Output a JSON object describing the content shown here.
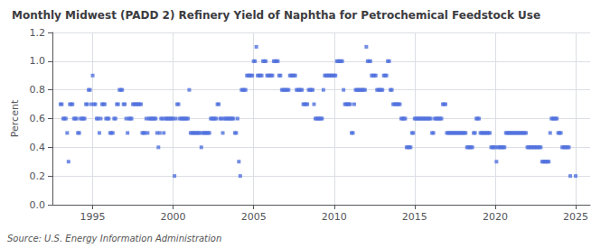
{
  "chart_data": {
    "type": "scatter",
    "title": "Monthly Midwest (PADD 2) Refinery Yield of Naphtha for Petrochemical Feedstock Use",
    "ylabel": "Percent",
    "annotation": "Source: U.S. Energy Information Administration",
    "marker": "square",
    "grid": true,
    "xlim": [
      1992.5,
      2025.9
    ],
    "xticks": [
      1995,
      2000,
      2005,
      2010,
      2015,
      2020,
      2025
    ],
    "ylim": [
      0.0,
      1.2
    ],
    "yticks": [
      {
        "value": 0.0,
        "label": "0.0"
      },
      0.2,
      0.4,
      0.6,
      0.8,
      {
        "value": 1.0,
        "label": "1.0"
      },
      1.2
    ],
    "x": [
      1993.0,
      1993.083,
      1993.167,
      1993.25,
      1993.333,
      1993.417,
      1993.5,
      1993.583,
      1993.667,
      1993.75,
      1993.833,
      1993.917,
      1994.0,
      1994.083,
      1994.167,
      1994.25,
      1994.333,
      1994.417,
      1994.5,
      1994.583,
      1994.667,
      1994.75,
      1994.833,
      1994.917,
      1995.0,
      1995.083,
      1995.167,
      1995.25,
      1995.333,
      1995.417,
      1995.5,
      1995.583,
      1995.667,
      1995.75,
      1995.833,
      1995.917,
      1996.0,
      1996.083,
      1996.167,
      1996.25,
      1996.333,
      1996.417,
      1996.5,
      1996.583,
      1996.667,
      1996.75,
      1996.833,
      1996.917,
      1997.0,
      1997.083,
      1997.167,
      1997.25,
      1997.333,
      1997.417,
      1997.5,
      1997.583,
      1997.667,
      1997.75,
      1997.833,
      1997.917,
      1998.0,
      1998.083,
      1998.167,
      1998.25,
      1998.333,
      1998.417,
      1998.5,
      1998.583,
      1998.667,
      1998.75,
      1998.833,
      1998.917,
      1999.0,
      1999.083,
      1999.167,
      1999.25,
      1999.333,
      1999.417,
      1999.5,
      1999.583,
      1999.667,
      1999.75,
      1999.833,
      1999.917,
      2000.0,
      2000.083,
      2000.167,
      2000.25,
      2000.333,
      2000.417,
      2000.5,
      2000.583,
      2000.667,
      2000.75,
      2000.833,
      2000.917,
      2001.0,
      2001.083,
      2001.167,
      2001.25,
      2001.333,
      2001.417,
      2001.5,
      2001.583,
      2001.667,
      2001.75,
      2001.833,
      2001.917,
      2002.0,
      2002.083,
      2002.167,
      2002.25,
      2002.333,
      2002.417,
      2002.5,
      2002.583,
      2002.667,
      2002.75,
      2002.833,
      2002.917,
      2003.0,
      2003.083,
      2003.167,
      2003.25,
      2003.333,
      2003.417,
      2003.5,
      2003.583,
      2003.667,
      2003.75,
      2003.833,
      2003.917,
      2004.0,
      2004.083,
      2004.167,
      2004.25,
      2004.333,
      2004.417,
      2004.5,
      2004.583,
      2004.667,
      2004.75,
      2004.833,
      2004.917,
      2005.0,
      2005.083,
      2005.167,
      2005.25,
      2005.333,
      2005.417,
      2005.5,
      2005.583,
      2005.667,
      2005.75,
      2005.833,
      2005.917,
      2006.0,
      2006.083,
      2006.167,
      2006.25,
      2006.333,
      2006.417,
      2006.5,
      2006.583,
      2006.667,
      2006.75,
      2006.833,
      2006.917,
      2007.0,
      2007.083,
      2007.167,
      2007.25,
      2007.333,
      2007.417,
      2007.5,
      2007.583,
      2007.667,
      2007.75,
      2007.833,
      2007.917,
      2008.0,
      2008.083,
      2008.167,
      2008.25,
      2008.333,
      2008.417,
      2008.5,
      2008.583,
      2008.667,
      2008.75,
      2008.833,
      2008.917,
      2009.0,
      2009.083,
      2009.167,
      2009.25,
      2009.333,
      2009.417,
      2009.5,
      2009.583,
      2009.667,
      2009.75,
      2009.833,
      2009.917,
      2010.0,
      2010.083,
      2010.167,
      2010.25,
      2010.333,
      2010.417,
      2010.5,
      2010.583,
      2010.667,
      2010.75,
      2010.833,
      2010.917,
      2011.0,
      2011.083,
      2011.167,
      2011.25,
      2011.333,
      2011.417,
      2011.5,
      2011.583,
      2011.667,
      2011.75,
      2011.833,
      2011.917,
      2012.0,
      2012.083,
      2012.167,
      2012.25,
      2012.333,
      2012.417,
      2012.5,
      2012.583,
      2012.667,
      2012.75,
      2012.833,
      2012.917,
      2013.0,
      2013.083,
      2013.167,
      2013.25,
      2013.333,
      2013.417,
      2013.5,
      2013.583,
      2013.667,
      2013.75,
      2013.833,
      2013.917,
      2014.0,
      2014.083,
      2014.167,
      2014.25,
      2014.333,
      2014.417,
      2014.5,
      2014.583,
      2014.667,
      2014.75,
      2014.833,
      2014.917,
      2015.0,
      2015.083,
      2015.167,
      2015.25,
      2015.333,
      2015.417,
      2015.5,
      2015.583,
      2015.667,
      2015.75,
      2015.833,
      2015.917,
      2016.0,
      2016.083,
      2016.167,
      2016.25,
      2016.333,
      2016.417,
      2016.5,
      2016.583,
      2016.667,
      2016.75,
      2016.833,
      2016.917,
      2017.0,
      2017.083,
      2017.167,
      2017.25,
      2017.333,
      2017.417,
      2017.5,
      2017.583,
      2017.667,
      2017.75,
      2017.833,
      2017.917,
      2018.0,
      2018.083,
      2018.167,
      2018.25,
      2018.333,
      2018.417,
      2018.5,
      2018.583,
      2018.667,
      2018.75,
      2018.833,
      2018.917,
      2019.0,
      2019.083,
      2019.167,
      2019.25,
      2019.333,
      2019.417,
      2019.5,
      2019.583,
      2019.667,
      2019.75,
      2019.833,
      2019.917,
      2020.0,
      2020.083,
      2020.167,
      2020.25,
      2020.333,
      2020.417,
      2020.5,
      2020.583,
      2020.667,
      2020.75,
      2020.833,
      2020.917,
      2021.0,
      2021.083,
      2021.167,
      2021.25,
      2021.333,
      2021.417,
      2021.5,
      2021.583,
      2021.667,
      2021.75,
      2021.833,
      2021.917,
      2022.0,
      2022.083,
      2022.167,
      2022.25,
      2022.333,
      2022.417,
      2022.5,
      2022.583,
      2022.667,
      2022.75,
      2022.833,
      2022.917,
      2023.0,
      2023.083,
      2023.167,
      2023.25,
      2023.333,
      2023.417,
      2023.5,
      2023.583,
      2023.667,
      2023.75,
      2023.833,
      2023.917,
      2024.0,
      2024.083,
      2024.167,
      2024.25,
      2024.333,
      2024.417,
      2024.5,
      2024.583,
      2024.667,
      2025.0
    ],
    "values": [
      0.7,
      0.7,
      0.6,
      0.6,
      0.6,
      0.5,
      0.3,
      0.7,
      0.7,
      0.7,
      0.6,
      0.6,
      0.6,
      0.5,
      0.5,
      0.6,
      0.6,
      0.6,
      0.6,
      0.7,
      0.7,
      0.8,
      0.8,
      0.7,
      0.9,
      0.7,
      0.7,
      0.6,
      0.6,
      0.5,
      0.6,
      0.7,
      0.7,
      0.7,
      0.6,
      0.6,
      0.6,
      0.5,
      0.5,
      0.5,
      0.6,
      0.6,
      0.7,
      0.7,
      0.8,
      0.8,
      0.8,
      0.7,
      0.7,
      0.6,
      0.5,
      0.6,
      0.6,
      0.6,
      0.7,
      0.7,
      0.7,
      0.7,
      0.7,
      0.7,
      0.7,
      0.5,
      0.5,
      0.5,
      0.6,
      0.5,
      0.6,
      0.6,
      0.6,
      0.6,
      0.6,
      0.6,
      0.5,
      0.4,
      0.5,
      0.6,
      0.6,
      0.5,
      0.6,
      0.6,
      0.6,
      0.6,
      0.6,
      0.6,
      0.6,
      0.2,
      0.6,
      0.7,
      0.7,
      0.6,
      0.6,
      0.6,
      0.6,
      0.6,
      0.6,
      0.6,
      0.8,
      0.5,
      0.5,
      0.5,
      0.5,
      0.5,
      0.5,
      0.5,
      0.5,
      0.4,
      0.5,
      0.5,
      0.5,
      0.5,
      0.5,
      0.5,
      0.6,
      0.6,
      0.6,
      0.6,
      0.6,
      0.7,
      0.7,
      0.6,
      0.6,
      0.5,
      0.6,
      0.6,
      0.6,
      0.6,
      0.6,
      0.6,
      0.6,
      0.6,
      0.5,
      0.5,
      0.6,
      0.3,
      0.2,
      0.8,
      0.8,
      0.8,
      0.8,
      0.9,
      0.9,
      0.9,
      0.9,
      0.9,
      1.0,
      1.0,
      1.1,
      0.9,
      0.9,
      0.9,
      0.9,
      1.0,
      1.0,
      1.0,
      0.9,
      0.9,
      0.9,
      0.9,
      0.9,
      1.0,
      1.0,
      1.0,
      1.0,
      0.9,
      0.9,
      0.8,
      0.8,
      0.8,
      0.8,
      0.8,
      0.8,
      0.9,
      0.9,
      0.9,
      0.9,
      0.9,
      0.8,
      0.8,
      0.8,
      0.8,
      0.8,
      0.7,
      0.7,
      0.7,
      0.7,
      0.8,
      0.8,
      0.8,
      0.8,
      0.7,
      0.6,
      0.6,
      0.6,
      0.6,
      0.6,
      0.6,
      0.8,
      0.9,
      0.9,
      0.9,
      0.9,
      0.9,
      0.9,
      0.9,
      0.9,
      0.9,
      1.0,
      1.0,
      1.0,
      1.0,
      1.0,
      0.8,
      0.7,
      0.7,
      0.7,
      0.7,
      0.7,
      0.5,
      0.5,
      0.7,
      0.8,
      0.8,
      0.8,
      0.8,
      0.8,
      0.8,
      0.8,
      0.8,
      1.1,
      1.0,
      1.0,
      1.0,
      0.9,
      0.9,
      0.9,
      0.9,
      0.8,
      0.8,
      0.8,
      0.8,
      0.8,
      0.9,
      0.9,
      0.9,
      1.0,
      1.0,
      0.8,
      0.8,
      0.7,
      0.7,
      0.7,
      0.7,
      0.7,
      0.7,
      0.6,
      0.6,
      0.6,
      0.6,
      0.4,
      0.4,
      0.4,
      0.4,
      0.5,
      0.5,
      0.6,
      0.6,
      0.6,
      0.6,
      0.6,
      0.6,
      0.6,
      0.6,
      0.6,
      0.6,
      0.6,
      0.6,
      0.6,
      0.5,
      0.5,
      0.6,
      0.6,
      0.6,
      0.6,
      0.6,
      0.6,
      0.7,
      0.7,
      0.7,
      0.5,
      0.5,
      0.5,
      0.5,
      0.5,
      0.5,
      0.5,
      0.5,
      0.5,
      0.5,
      0.5,
      0.5,
      0.5,
      0.5,
      0.5,
      0.4,
      0.4,
      0.4,
      0.4,
      0.4,
      0.5,
      0.5,
      0.6,
      0.6,
      0.6,
      0.5,
      0.5,
      0.5,
      0.5,
      0.5,
      0.5,
      0.5,
      0.5,
      0.4,
      0.4,
      0.4,
      0.4,
      0.3,
      0.4,
      0.4,
      0.4,
      0.4,
      0.4,
      0.4,
      0.5,
      0.5,
      0.5,
      0.5,
      0.5,
      0.5,
      0.5,
      0.5,
      0.5,
      0.5,
      0.5,
      0.5,
      0.5,
      0.5,
      0.5,
      0.5,
      0.4,
      0.4,
      0.4,
      0.4,
      0.4,
      0.4,
      0.4,
      0.4,
      0.4,
      0.4,
      0.4,
      0.3,
      0.3,
      0.3,
      0.3,
      0.3,
      0.3,
      0.5,
      0.6,
      0.6,
      0.6,
      0.6,
      0.6,
      0.5,
      0.5,
      0.5,
      0.4,
      0.4,
      0.4,
      0.4,
      0.4,
      0.4,
      0.2,
      0.2
    ]
  }
}
